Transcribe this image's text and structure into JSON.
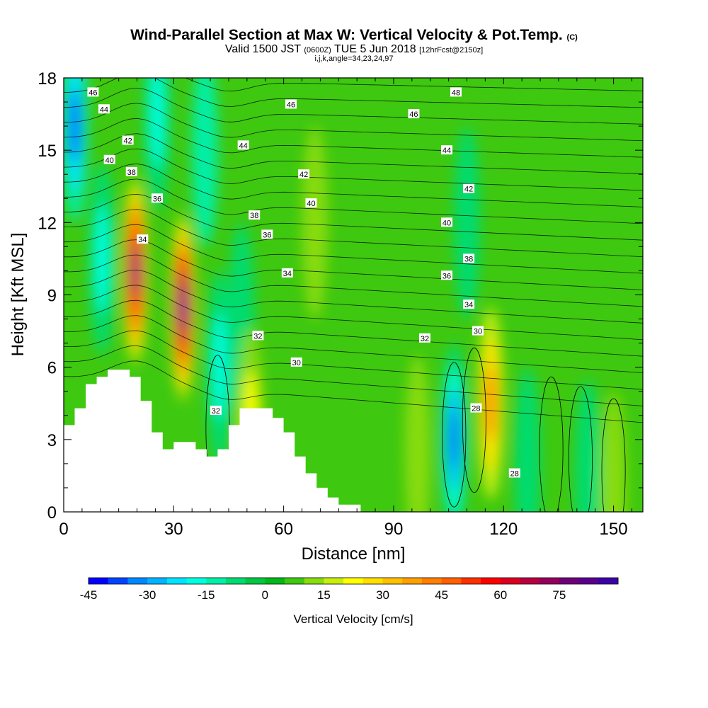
{
  "header": {
    "title": "Wind-Parallel Section at Max W: Vertical Velocity & Pot.Temp.",
    "title_mark": "(C)",
    "valid_prefix": "Valid 1500 JST",
    "valid_utc": "(0600Z)",
    "valid_date": "TUE 5 Jun 2018",
    "fcst": "[12hrFcst@2150z]",
    "section_params": "i,j,k,angle=34,23,24,97"
  },
  "chart_data": {
    "type": "heatmap",
    "xlabel": "Distance [nm]",
    "ylabel": "Height [Kft MSL]",
    "xlim": [
      0,
      158
    ],
    "ylim": [
      0,
      18
    ],
    "x_ticks": [
      0,
      30,
      60,
      90,
      120,
      150
    ],
    "y_ticks": [
      0,
      3,
      6,
      9,
      12,
      15,
      18
    ],
    "colorbar": {
      "label": "Vertical Velocity [cm/s]",
      "min": -45,
      "max": 90,
      "step": 5,
      "tick_values": [
        -45,
        -30,
        -15,
        0,
        15,
        30,
        45,
        60,
        75
      ],
      "colors": [
        "#0000ff",
        "#0044ff",
        "#0088ff",
        "#00b4ff",
        "#00e4ff",
        "#00ffe0",
        "#00f0a8",
        "#00dc70",
        "#00c840",
        "#00b818",
        "#3ec810",
        "#88dc10",
        "#c8ee10",
        "#ffff00",
        "#ffe000",
        "#ffc000",
        "#ffa000",
        "#ff8000",
        "#ff6000",
        "#ff3000",
        "#ff0000",
        "#dc0020",
        "#b80040",
        "#94005c",
        "#700078",
        "#5a0090",
        "#3e00a8"
      ]
    },
    "terrain": [
      [
        0,
        3.6
      ],
      [
        3,
        3.6
      ],
      [
        3,
        4.3
      ],
      [
        6,
        4.3
      ],
      [
        6,
        5.3
      ],
      [
        9,
        5.3
      ],
      [
        9,
        5.6
      ],
      [
        12,
        5.6
      ],
      [
        12,
        5.9
      ],
      [
        18,
        5.9
      ],
      [
        18,
        5.6
      ],
      [
        21,
        5.6
      ],
      [
        21,
        4.6
      ],
      [
        24,
        4.6
      ],
      [
        24,
        3.3
      ],
      [
        27,
        3.3
      ],
      [
        27,
        2.6
      ],
      [
        30,
        2.6
      ],
      [
        30,
        2.9
      ],
      [
        36,
        2.9
      ],
      [
        36,
        2.6
      ],
      [
        39,
        2.6
      ],
      [
        39,
        2.3
      ],
      [
        42,
        2.3
      ],
      [
        42,
        2.6
      ],
      [
        45,
        2.6
      ],
      [
        45,
        3.6
      ],
      [
        48,
        3.6
      ],
      [
        48,
        4.3
      ],
      [
        57,
        4.3
      ],
      [
        57,
        3.9
      ],
      [
        60,
        3.9
      ],
      [
        60,
        3.3
      ],
      [
        63,
        3.3
      ],
      [
        63,
        2.3
      ],
      [
        66,
        2.3
      ],
      [
        66,
        1.6
      ],
      [
        69,
        1.6
      ],
      [
        69,
        1.0
      ],
      [
        72,
        1.0
      ],
      [
        72,
        0.6
      ],
      [
        75,
        0.6
      ],
      [
        75,
        0.3
      ],
      [
        81,
        0.3
      ],
      [
        81,
        0
      ]
    ],
    "velocity_features": [
      {
        "x": 19.5,
        "z": 10.0,
        "value": 80
      },
      {
        "x": 32.5,
        "z": 8.5,
        "value": 85
      },
      {
        "x": 116.5,
        "z": 4.5,
        "value": 38
      },
      {
        "x": 106.5,
        "z": 3.0,
        "value": -42
      },
      {
        "x": 3.0,
        "z": 16.0,
        "value": -38
      },
      {
        "x": 10.5,
        "z": 10.5,
        "value": -22
      },
      {
        "x": 42.5,
        "z": 6.0,
        "value": -20
      },
      {
        "x": 48.5,
        "z": 8.0,
        "value": -12
      },
      {
        "x": 25.5,
        "z": 16.5,
        "value": -18
      },
      {
        "x": 38.5,
        "z": 15.0,
        "value": -15
      },
      {
        "x": 68.5,
        "z": 12.0,
        "value": 12
      },
      {
        "x": 51.0,
        "z": 3.6,
        "value": 22
      },
      {
        "x": 126.5,
        "z": 2.0,
        "value": -10
      },
      {
        "x": 96.5,
        "z": 2.5,
        "value": 10
      },
      {
        "x": 143.0,
        "z": 1.5,
        "value": -8
      },
      {
        "x": 150.0,
        "z": 1.0,
        "value": 12
      },
      {
        "x": 110.0,
        "z": 12.0,
        "value": -6
      }
    ],
    "theta_contour_labels": [
      {
        "text": "46",
        "x": 8,
        "z": 17.4
      },
      {
        "text": "44",
        "x": 11,
        "z": 16.7
      },
      {
        "text": "42",
        "x": 17.5,
        "z": 15.4
      },
      {
        "text": "40",
        "x": 12.5,
        "z": 14.6
      },
      {
        "text": "38",
        "x": 18.5,
        "z": 14.1
      },
      {
        "text": "36",
        "x": 25.5,
        "z": 13.0
      },
      {
        "text": "34",
        "x": 21.5,
        "z": 11.3
      },
      {
        "text": "46",
        "x": 62,
        "z": 16.9
      },
      {
        "text": "44",
        "x": 49,
        "z": 15.2
      },
      {
        "text": "42",
        "x": 65.5,
        "z": 14.0
      },
      {
        "text": "40",
        "x": 67.5,
        "z": 12.8
      },
      {
        "text": "38",
        "x": 52,
        "z": 12.3
      },
      {
        "text": "36",
        "x": 55.5,
        "z": 11.5
      },
      {
        "text": "34",
        "x": 61,
        "z": 9.9
      },
      {
        "text": "32",
        "x": 53,
        "z": 7.3
      },
      {
        "text": "30",
        "x": 63.5,
        "z": 6.2
      },
      {
        "text": "32",
        "x": 41.5,
        "z": 4.2
      },
      {
        "text": "48",
        "x": 107,
        "z": 17.4
      },
      {
        "text": "46",
        "x": 95.5,
        "z": 16.5
      },
      {
        "text": "44",
        "x": 104.5,
        "z": 15.0
      },
      {
        "text": "42",
        "x": 110.5,
        "z": 13.4
      },
      {
        "text": "40",
        "x": 104.5,
        "z": 12.0
      },
      {
        "text": "38",
        "x": 110.5,
        "z": 10.5
      },
      {
        "text": "36",
        "x": 104.5,
        "z": 9.8
      },
      {
        "text": "34",
        "x": 110.5,
        "z": 8.6
      },
      {
        "text": "32",
        "x": 98.5,
        "z": 7.2
      },
      {
        "text": "30",
        "x": 113,
        "z": 7.5
      },
      {
        "text": "28",
        "x": 112.5,
        "z": 4.3
      },
      {
        "text": "28",
        "x": 123,
        "z": 1.6
      }
    ]
  }
}
